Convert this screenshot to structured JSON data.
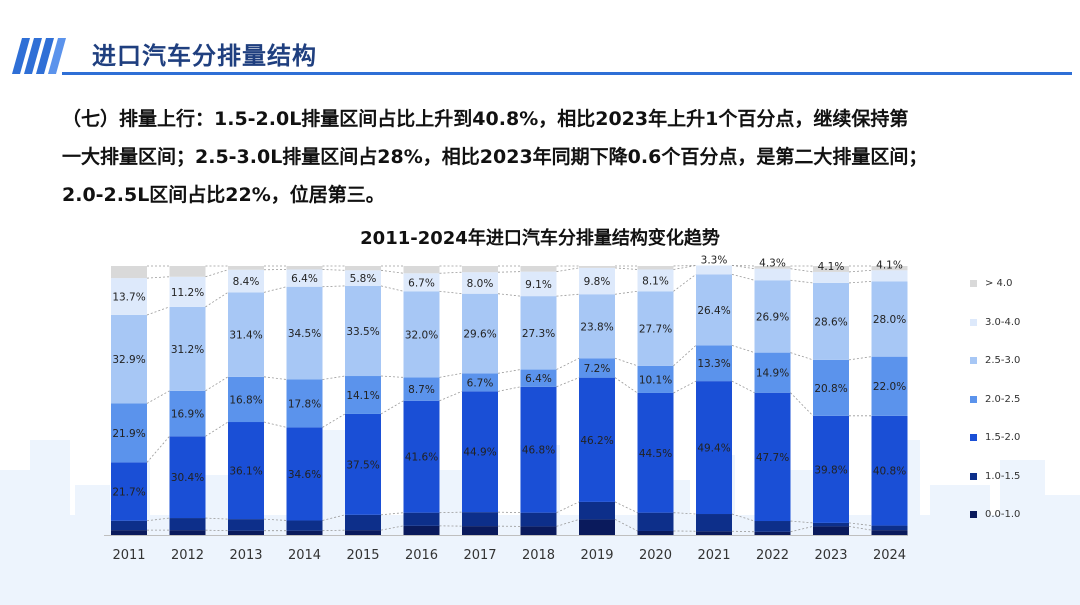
{
  "header": {
    "title": "进口汽车分排量结构"
  },
  "paragraph": {
    "line1": "（七）排量上行：1.5-2.0L排量区间占比上升到40.8%，相比2023年上升1个百分点，继续保持第",
    "line2": "一大排量区间；2.5-3.0L排量区间占28%，相比2023年同期下降0.6个百分点，是第二大排量区间；",
    "line3": "2.0-2.5L区间占比22%，位居第三。"
  },
  "colors": {
    "accent": "#2f6fd6",
    "title": "#1f3f7f",
    "skyline": "#eaf2fc"
  },
  "chart_data": {
    "type": "bar",
    "stacked": true,
    "percent": true,
    "title": "2011-2024年进口汽车分排量结构变化趋势",
    "xlabel": "",
    "ylabel": "",
    "ylim": [
      0,
      100
    ],
    "legend_position": "right",
    "categories": [
      "2011",
      "2012",
      "2013",
      "2014",
      "2015",
      "2016",
      "2017",
      "2018",
      "2019",
      "2020",
      "2021",
      "2022",
      "2023",
      "2024"
    ],
    "series": [
      {
        "name": "0.0-1.0",
        "color": "#0a1a5c",
        "values": [
          1.8,
          1.8,
          1.6,
          1.6,
          1.8,
          3.4,
          3.3,
          3.2,
          5.8,
          1.5,
          1.4,
          1.2,
          3.2,
          1.8
        ]
      },
      {
        "name": "1.0-1.5",
        "color": "#0d2f8a",
        "values": [
          3.5,
          4.5,
          4.3,
          3.8,
          5.7,
          4.9,
          5.2,
          5.1,
          6.5,
          6.8,
          6.4,
          4.0,
          1.3,
          1.7
        ]
      },
      {
        "name": "1.5-2.0",
        "color": "#1a4fd6",
        "values": [
          21.7,
          30.4,
          36.1,
          34.6,
          37.5,
          41.6,
          44.9,
          46.8,
          46.2,
          44.5,
          49.4,
          47.7,
          39.8,
          40.8
        ]
      },
      {
        "name": "2.0-2.5",
        "color": "#5b93ec",
        "values": [
          21.9,
          16.9,
          16.8,
          17.8,
          14.1,
          8.7,
          6.7,
          6.4,
          7.2,
          10.1,
          13.3,
          14.9,
          20.8,
          22.0
        ]
      },
      {
        "name": "2.5-3.0",
        "color": "#a7c7f5",
        "values": [
          32.9,
          31.2,
          31.4,
          34.5,
          33.5,
          32.0,
          29.6,
          27.3,
          23.8,
          27.7,
          26.4,
          26.9,
          28.6,
          28.0
        ]
      },
      {
        "name": "3.0-4.0",
        "color": "#dde9fb",
        "values": [
          13.7,
          11.2,
          8.4,
          6.4,
          5.8,
          6.7,
          8.0,
          9.1,
          9.8,
          8.1,
          3.3,
          4.3,
          4.1,
          4.1
        ]
      },
      {
        "name": "> 4.0",
        "color": "#d9d9d9",
        "values": [
          4.5,
          4.0,
          1.4,
          1.3,
          1.6,
          2.7,
          2.3,
          2.1,
          0.7,
          1.3,
          0.0,
          1.0,
          2.2,
          1.6
        ]
      }
    ],
    "labeled_series": [
      "1.5-2.0",
      "2.0-2.5",
      "2.5-3.0",
      "3.0-4.0"
    ],
    "labels": {
      "1.5-2.0": [
        "21.7%",
        "30.4%",
        "36.1%",
        "34.6%",
        "37.5%",
        "41.6%",
        "44.9%",
        "46.8%",
        "46.2%",
        "44.5%",
        "49.4%",
        "47.7%",
        "39.8%",
        "40.8%"
      ],
      "2.0-2.5": [
        "21.9%",
        "16.9%",
        "16.8%",
        "17.8%",
        "14.1%",
        "8.7%",
        "6.7%",
        "6.4%",
        "7.2%",
        "10.1%",
        "13.3%",
        "14.9%",
        "20.8%",
        "22.0%"
      ],
      "2.5-3.0": [
        "32.9%",
        "31.2%",
        "31.4%",
        "34.5%",
        "33.5%",
        "32.0%",
        "29.6%",
        "27.3%",
        "23.8%",
        "27.7%",
        "26.4%",
        "26.9%",
        "28.6%",
        "28.0%"
      ],
      "3.0-4.0": [
        "13.7%",
        "11.2%",
        "8.4%",
        "6.4%",
        "5.8%",
        "6.7%",
        "8.0%",
        "9.1%",
        "9.8%",
        "8.1%",
        "3.3%",
        "4.3%",
        "4.1%",
        "4.1%"
      ]
    }
  }
}
